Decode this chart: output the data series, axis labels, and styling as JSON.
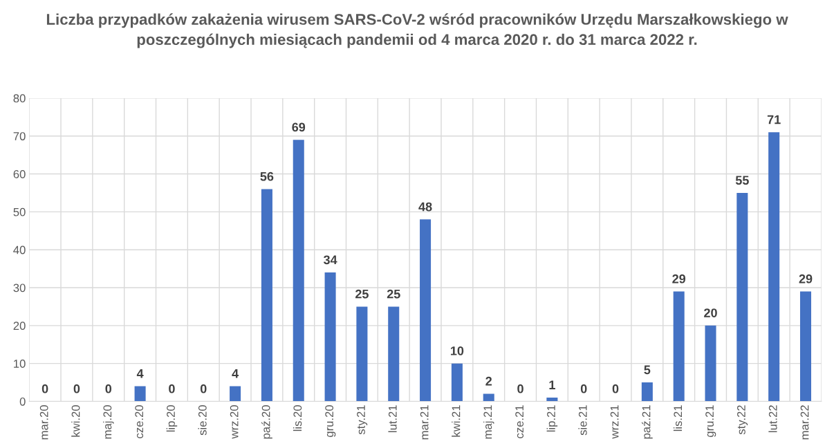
{
  "chart_data": {
    "type": "bar",
    "title": "Liczba przypadków zakażenia wirusem SARS-CoV-2 wśród pracowników Urzędu Marszałkowskiego w poszczególnych miesiącach pandemii od 4 marca 2020 r. do 31 marca 2022 r.",
    "categories": [
      "mar.20",
      "kwi.20",
      "maj.20",
      "cze.20",
      "lip.20",
      "sie.20",
      "wrz.20",
      "paź.20",
      "lis.20",
      "gru.20",
      "sty.21",
      "lut.21",
      "mar.21",
      "kwi.21",
      "maj.21",
      "cze.21",
      "lip.21",
      "sie.21",
      "wrz.21",
      "paź.21",
      "lis.21",
      "gru.21",
      "sty.22",
      "lut.22",
      "mar.22"
    ],
    "values": [
      0,
      0,
      0,
      4,
      0,
      0,
      4,
      56,
      69,
      34,
      25,
      25,
      48,
      10,
      2,
      0,
      1,
      0,
      0,
      5,
      29,
      20,
      55,
      71,
      29
    ],
    "color": "#4472c4",
    "ylim": [
      0,
      80
    ],
    "yticks": [
      0,
      10,
      20,
      30,
      40,
      50,
      60,
      70,
      80
    ],
    "grid": true,
    "data_labels": true
  }
}
